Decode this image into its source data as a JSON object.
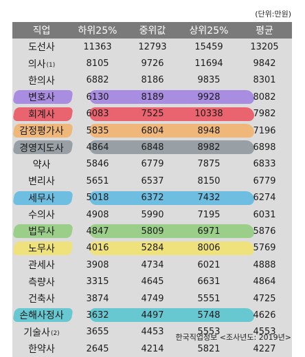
{
  "unit_note": "(단위:만원)",
  "headers": [
    "직업",
    "하위25%",
    "중위값",
    "상위25%",
    "평균"
  ],
  "rows": [
    {
      "job": "도선사",
      "sub": "",
      "values": [
        "11363",
        "12793",
        "15459",
        "13205"
      ],
      "highlight": ""
    },
    {
      "job": "의사",
      "sub": "(1)",
      "values": [
        "8105",
        "9726",
        "11694",
        "9842"
      ],
      "highlight": ""
    },
    {
      "job": "한의사",
      "sub": "",
      "values": [
        "6882",
        "8186",
        "9835",
        "8301"
      ],
      "highlight": ""
    },
    {
      "job": "변호사",
      "sub": "",
      "values": [
        "6130",
        "8189",
        "9928",
        "8082"
      ],
      "highlight": "#9f7fe0"
    },
    {
      "job": "회계사",
      "sub": "",
      "values": [
        "6083",
        "7525",
        "10338",
        "7982"
      ],
      "highlight": "#ec4f5c"
    },
    {
      "job": "감정평가사",
      "sub": "",
      "values": [
        "5835",
        "6804",
        "8948",
        "7196"
      ],
      "highlight": "#f3b06a"
    },
    {
      "job": "경영지도사",
      "sub": "",
      "values": [
        "4864",
        "6848",
        "8982",
        "6898"
      ],
      "highlight": "#8c959c"
    },
    {
      "job": "약사",
      "sub": "",
      "values": [
        "5846",
        "6779",
        "7875",
        "6833"
      ],
      "highlight": ""
    },
    {
      "job": "변리사",
      "sub": "",
      "values": [
        "5651",
        "6537",
        "8150",
        "6779"
      ],
      "highlight": ""
    },
    {
      "job": "세무사",
      "sub": "",
      "values": [
        "5018",
        "6372",
        "7432",
        "6274"
      ],
      "highlight": "#5bb8e3"
    },
    {
      "job": "수의사",
      "sub": "",
      "values": [
        "4908",
        "5990",
        "7195",
        "6031"
      ],
      "highlight": ""
    },
    {
      "job": "법무사",
      "sub": "",
      "values": [
        "4847",
        "5809",
        "6971",
        "5876"
      ],
      "highlight": "#8fcc7a"
    },
    {
      "job": "노무사",
      "sub": "",
      "values": [
        "4016",
        "5284",
        "8006",
        "5769"
      ],
      "highlight": "#f2e26a"
    },
    {
      "job": "관세사",
      "sub": "",
      "values": [
        "3908",
        "4734",
        "6021",
        "4888"
      ],
      "highlight": ""
    },
    {
      "job": "측량사",
      "sub": "",
      "values": [
        "3315",
        "4645",
        "6631",
        "4864"
      ],
      "highlight": ""
    },
    {
      "job": "건축사",
      "sub": "",
      "values": [
        "3874",
        "4749",
        "5551",
        "4725"
      ],
      "highlight": ""
    },
    {
      "job": "손해사정사",
      "sub": "",
      "values": [
        "3632",
        "4497",
        "5748",
        "4626"
      ],
      "highlight": "#52c4cf"
    },
    {
      "job": "기술사",
      "sub": "(2)",
      "values": [
        "3655",
        "4453",
        "5553",
        "4553"
      ],
      "highlight": ""
    },
    {
      "job": "한약사",
      "sub": "",
      "values": [
        "2645",
        "4214",
        "5821",
        "4227"
      ],
      "highlight": ""
    }
  ],
  "source": "한국직업정보 <조사년도: 2019년>"
}
